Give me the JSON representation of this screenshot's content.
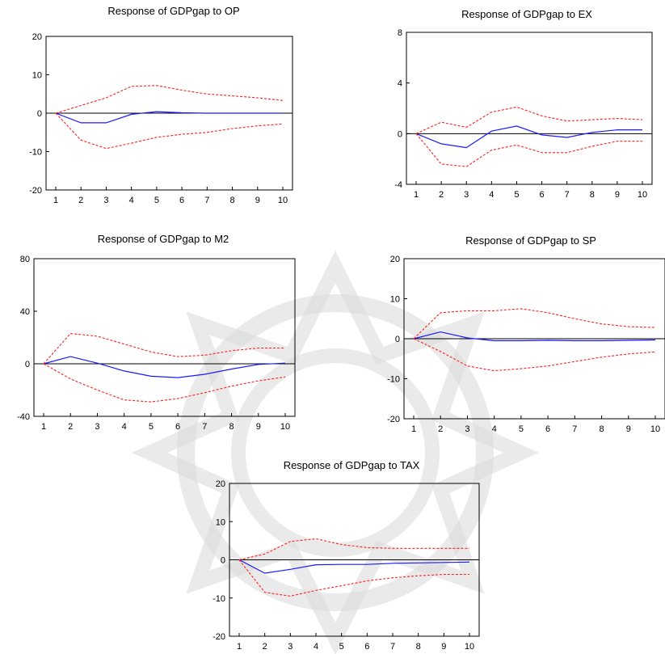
{
  "figure": {
    "background_watermark": "decorative-flower-watermark",
    "colors": {
      "response": "#1a1aff",
      "confidence_band": "#ff2020",
      "axis": "#000000"
    }
  },
  "chart_data": [
    {
      "id": "op",
      "type": "line",
      "title": "Response of GDPgap to OP",
      "x": [
        1,
        2,
        3,
        4,
        5,
        6,
        7,
        8,
        9,
        10
      ],
      "ylim": [
        -20,
        20
      ],
      "yticks": [
        20,
        10,
        0,
        -10,
        -20
      ],
      "series": [
        {
          "role": "response",
          "values": [
            0,
            -2.5,
            -2.5,
            -0.3,
            0.4,
            0.1,
            0,
            0,
            0,
            0
          ]
        },
        {
          "role": "upper",
          "values": [
            0,
            2,
            4,
            7,
            7.2,
            6,
            5,
            4.5,
            4,
            3.3
          ]
        },
        {
          "role": "lower",
          "values": [
            0,
            -7,
            -9.2,
            -7.8,
            -6.3,
            -5.5,
            -5,
            -4,
            -3.3,
            -2.8
          ]
        }
      ]
    },
    {
      "id": "ex",
      "type": "line",
      "title": "Response of GDPgap to EX",
      "x": [
        1,
        2,
        3,
        4,
        5,
        6,
        7,
        8,
        9,
        10
      ],
      "ylim": [
        -4,
        8
      ],
      "yticks": [
        8,
        4,
        0,
        -4
      ],
      "series": [
        {
          "role": "response",
          "values": [
            0,
            -0.8,
            -1.1,
            0.2,
            0.6,
            -0.1,
            -0.3,
            0.1,
            0.3,
            0.3
          ]
        },
        {
          "role": "upper",
          "values": [
            0,
            0.9,
            0.5,
            1.7,
            2.1,
            1.4,
            1.0,
            1.1,
            1.2,
            1.1
          ]
        },
        {
          "role": "lower",
          "values": [
            0,
            -2.4,
            -2.6,
            -1.3,
            -0.9,
            -1.5,
            -1.5,
            -1.0,
            -0.6,
            -0.6
          ]
        }
      ]
    },
    {
      "id": "m2",
      "type": "line",
      "title": "Response of GDPgap to M2",
      "x": [
        1,
        2,
        3,
        4,
        5,
        6,
        7,
        8,
        9,
        10
      ],
      "ylim": [
        -40,
        80
      ],
      "yticks": [
        80,
        40,
        0,
        -40
      ],
      "series": [
        {
          "role": "response",
          "values": [
            0,
            5.5,
            0.5,
            -5.5,
            -9.5,
            -10.5,
            -8,
            -4,
            -0.5,
            0.5
          ]
        },
        {
          "role": "upper",
          "values": [
            0,
            23,
            21,
            15,
            9,
            5.5,
            6.5,
            10,
            12,
            12
          ]
        },
        {
          "role": "lower",
          "values": [
            0,
            -11.5,
            -20,
            -27.5,
            -29,
            -26.5,
            -22,
            -17,
            -13,
            -10
          ]
        }
      ]
    },
    {
      "id": "sp",
      "type": "line",
      "title": "Response of GDPgap to SP",
      "x": [
        1,
        2,
        3,
        4,
        5,
        6,
        7,
        8,
        9,
        10
      ],
      "ylim": [
        -20,
        20
      ],
      "yticks": [
        20,
        10,
        0,
        -10,
        -20
      ],
      "series": [
        {
          "role": "response",
          "values": [
            0,
            1.7,
            0.2,
            -0.5,
            -0.5,
            -0.4,
            -0.5,
            -0.5,
            -0.4,
            -0.3
          ]
        },
        {
          "role": "upper",
          "values": [
            0,
            6.5,
            7,
            7,
            7.5,
            6.5,
            5,
            3.7,
            3,
            2.8
          ]
        },
        {
          "role": "lower",
          "values": [
            0,
            -3.2,
            -6.8,
            -8,
            -7.5,
            -6.8,
            -5.7,
            -4.6,
            -3.8,
            -3.3
          ]
        }
      ]
    },
    {
      "id": "tax",
      "type": "line",
      "title": "Response of GDPgap to TAX",
      "x": [
        1,
        2,
        3,
        4,
        5,
        6,
        7,
        8,
        9,
        10
      ],
      "ylim": [
        -20,
        20
      ],
      "yticks": [
        20,
        10,
        0,
        -10,
        -20
      ],
      "series": [
        {
          "role": "response",
          "values": [
            0,
            -3.5,
            -2.5,
            -1.3,
            -1.2,
            -1.2,
            -0.9,
            -0.8,
            -0.7,
            -0.6
          ]
        },
        {
          "role": "upper",
          "values": [
            0,
            1.5,
            4.8,
            5.5,
            4,
            3.2,
            3,
            3,
            3,
            3
          ]
        },
        {
          "role": "lower",
          "values": [
            0,
            -8.5,
            -9.5,
            -8,
            -6.8,
            -5.5,
            -4.7,
            -4.2,
            -3.8,
            -3.8
          ]
        }
      ]
    }
  ]
}
